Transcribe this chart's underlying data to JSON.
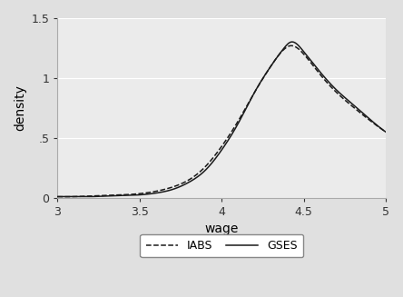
{
  "xlabel": "wage",
  "ylabel": "density",
  "xlim": [
    3,
    5
  ],
  "ylim": [
    0,
    1.5
  ],
  "xticks": [
    3,
    3.5,
    4,
    4.5,
    5
  ],
  "yticks": [
    0,
    0.5,
    1,
    1.5
  ],
  "ytick_labels": [
    "0",
    ".5",
    "1",
    "1.5"
  ],
  "background_color": "#e0e0e0",
  "plot_bg_color": "#ebebeb",
  "grid_color": "#ffffff",
  "line_color": "#1a1a1a",
  "legend_labels": [
    "IABS",
    "GSES"
  ],
  "figsize": [
    4.44,
    3.27
  ],
  "dpi": 100,
  "gses_points_x": [
    3.0,
    3.1,
    3.2,
    3.3,
    3.4,
    3.5,
    3.6,
    3.7,
    3.8,
    3.9,
    4.0,
    4.1,
    4.2,
    4.3,
    4.38,
    4.42,
    4.5,
    4.6,
    4.7,
    4.8,
    4.9,
    5.0
  ],
  "gses_points_y": [
    0.01,
    0.01,
    0.01,
    0.015,
    0.02,
    0.025,
    0.04,
    0.07,
    0.13,
    0.23,
    0.4,
    0.62,
    0.88,
    1.1,
    1.25,
    1.3,
    1.22,
    1.05,
    0.9,
    0.78,
    0.66,
    0.55
  ],
  "iabs_points_x": [
    3.0,
    3.1,
    3.2,
    3.3,
    3.4,
    3.5,
    3.6,
    3.7,
    3.8,
    3.9,
    4.0,
    4.1,
    4.2,
    4.3,
    4.38,
    4.42,
    4.5,
    4.6,
    4.7,
    4.8,
    4.9,
    5.0
  ],
  "iabs_points_y": [
    0.01,
    0.01,
    0.015,
    0.02,
    0.025,
    0.035,
    0.055,
    0.09,
    0.15,
    0.26,
    0.43,
    0.64,
    0.88,
    1.1,
    1.24,
    1.27,
    1.2,
    1.03,
    0.88,
    0.76,
    0.65,
    0.55
  ]
}
